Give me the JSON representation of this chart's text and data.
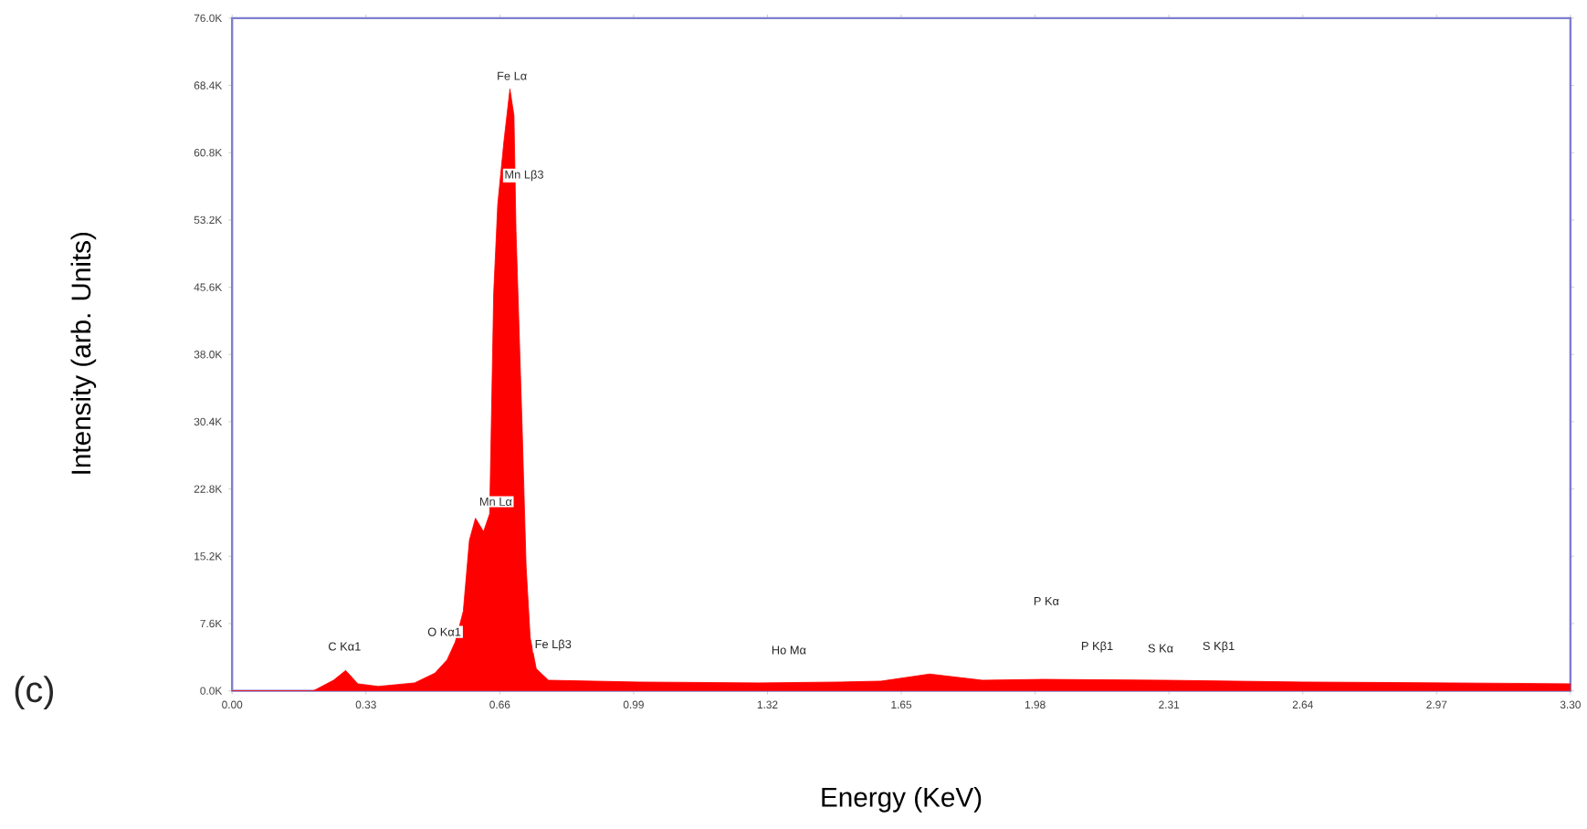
{
  "chart_data": {
    "type": "area",
    "xlabel": "Energy (KeV)",
    "ylabel": "Intensity (arb. Units)",
    "xlim": [
      0,
      3.3
    ],
    "ylim": [
      0,
      76000
    ],
    "xticks": [
      {
        "value": 0,
        "label": "0.00"
      },
      {
        "value": 0.33,
        "label": "0.33"
      },
      {
        "value": 0.66,
        "label": "0.66"
      },
      {
        "value": 0.99,
        "label": "0.99"
      },
      {
        "value": 1.32,
        "label": "1.32"
      },
      {
        "value": 1.65,
        "label": "1.65"
      },
      {
        "value": 1.98,
        "label": "1.98"
      },
      {
        "value": 2.31,
        "label": "2.31"
      },
      {
        "value": 2.64,
        "label": "2.64"
      },
      {
        "value": 2.97,
        "label": "2.97"
      },
      {
        "value": 3.3,
        "label": "3.30"
      }
    ],
    "yticks": [
      {
        "value": 0,
        "label": "0.0K"
      },
      {
        "value": 7600,
        "label": "7.6K"
      },
      {
        "value": 15200,
        "label": "15.2K"
      },
      {
        "value": 22800,
        "label": "22.8K"
      },
      {
        "value": 30400,
        "label": "30.4K"
      },
      {
        "value": 38000,
        "label": "38.0K"
      },
      {
        "value": 45600,
        "label": "45.6K"
      },
      {
        "value": 53200,
        "label": "53.2K"
      },
      {
        "value": 60800,
        "label": "60.8K"
      },
      {
        "value": 68400,
        "label": "68.4K"
      },
      {
        "value": 76000,
        "label": "76.0K"
      }
    ],
    "x": [
      0,
      0.2,
      0.25,
      0.28,
      0.31,
      0.36,
      0.45,
      0.5,
      0.53,
      0.55,
      0.57,
      0.585,
      0.6,
      0.62,
      0.635,
      0.645,
      0.655,
      0.67,
      0.685,
      0.695,
      0.7,
      0.715,
      0.725,
      0.735,
      0.75,
      0.78,
      1.0,
      1.3,
      1.5,
      1.6,
      1.72,
      1.85,
      2.0,
      2.3,
      2.64,
      3.0,
      3.3
    ],
    "series": [
      {
        "color": "#ff0000",
        "values": [
          0,
          0,
          1200,
          2300,
          800,
          500,
          900,
          2000,
          3500,
          5500,
          9000,
          17000,
          19500,
          18000,
          20000,
          45000,
          55000,
          62000,
          68000,
          65000,
          52000,
          30000,
          14000,
          6000,
          2500,
          1200,
          1000,
          900,
          1000,
          1100,
          1900,
          1200,
          1300,
          1200,
          1000,
          900,
          800
        ]
      }
    ],
    "annotations": [
      "(c)",
      {
        "text": "Fe Lα",
        "x": 0.69,
        "y": 68800
      },
      {
        "text": "Mn Lβ3",
        "x": 0.72,
        "y": 57400
      },
      {
        "text": "Mn Lα",
        "x": 0.65,
        "y": 20700
      },
      "C Kα1",
      "O Kα1",
      "Fe Lβ3",
      "Ho Mα",
      "P Kα",
      "P Kβ1",
      "S Kα",
      "S Kβ1"
    ]
  }
}
